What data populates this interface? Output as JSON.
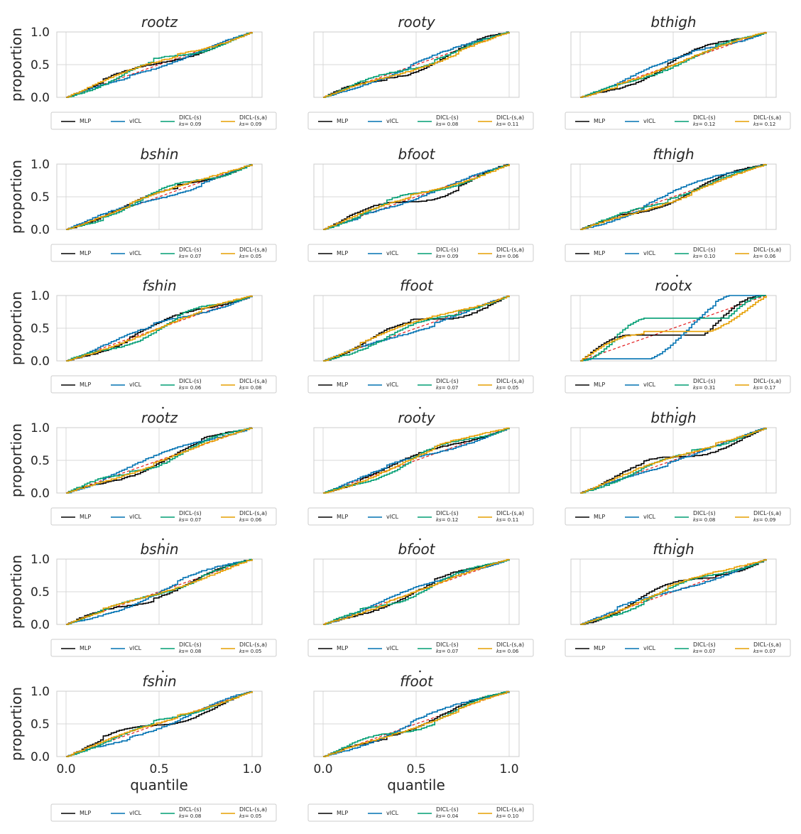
{
  "chart_data": {
    "type": "line",
    "description": "Calibration (PIT/ECDF) plots, proportion vs quantile, per state dimension",
    "xlabel": "quantile",
    "ylabel": "proportion",
    "xlim": [
      0.0,
      1.0
    ],
    "ylim": [
      0.0,
      1.0
    ],
    "xticks": [
      "0.0",
      "0.5",
      "1.0"
    ],
    "yticks": [
      "0.0",
      "0.5",
      "1.0"
    ],
    "grid": true,
    "legend_placement": "below each subplot",
    "series_names": [
      "MLP",
      "vICL",
      "DICL-(s)",
      "DICL-(s,a)"
    ],
    "series_colors": {
      "MLP": "#000000",
      "vICL": "#0072b2",
      "DICL-(s)": "#009e73",
      "DICL-(s,a)": "#e69f00",
      "reference": "#e31a1c"
    },
    "ks_prefix": "ks",
    "panels": [
      {
        "title": "rootz",
        "dot": false,
        "ks": {
          "DICL-(s)": "0.09",
          "DICL-(s,a)": "0.09"
        }
      },
      {
        "title": "rooty",
        "dot": false,
        "ks": {
          "DICL-(s)": "0.08",
          "DICL-(s,a)": "0.11"
        }
      },
      {
        "title": "bthigh",
        "dot": false,
        "ks": {
          "DICL-(s)": "0.12",
          "DICL-(s,a)": "0.12"
        }
      },
      {
        "title": "bshin",
        "dot": false,
        "ks": {
          "DICL-(s)": "0.07",
          "DICL-(s,a)": "0.05"
        }
      },
      {
        "title": "bfoot",
        "dot": false,
        "ks": {
          "DICL-(s)": "0.09",
          "DICL-(s,a)": "0.06"
        }
      },
      {
        "title": "fthigh",
        "dot": false,
        "ks": {
          "DICL-(s)": "0.10",
          "DICL-(s,a)": "0.06"
        }
      },
      {
        "title": "fshin",
        "dot": false,
        "ks": {
          "DICL-(s)": "0.06",
          "DICL-(s,a)": "0.08"
        }
      },
      {
        "title": "ffoot",
        "dot": false,
        "ks": {
          "DICL-(s)": "0.07",
          "DICL-(s,a)": "0.05"
        }
      },
      {
        "title": "rootx",
        "dot": true,
        "ks": {
          "DICL-(s)": "0.31",
          "DICL-(s,a)": "0.17"
        }
      },
      {
        "title": "rootz",
        "dot": true,
        "ks": {
          "DICL-(s)": "0.07",
          "DICL-(s,a)": "0.06"
        }
      },
      {
        "title": "rooty",
        "dot": true,
        "ks": {
          "DICL-(s)": "0.12",
          "DICL-(s,a)": "0.11"
        }
      },
      {
        "title": "bthigh",
        "dot": true,
        "ks": {
          "DICL-(s)": "0.08",
          "DICL-(s,a)": "0.09"
        }
      },
      {
        "title": "bshin",
        "dot": true,
        "ks": {
          "DICL-(s)": "0.08",
          "DICL-(s,a)": "0.05"
        }
      },
      {
        "title": "bfoot",
        "dot": true,
        "ks": {
          "DICL-(s)": "0.07",
          "DICL-(s,a)": "0.06"
        }
      },
      {
        "title": "fthigh",
        "dot": true,
        "ks": {
          "DICL-(s)": "0.07",
          "DICL-(s,a)": "0.07"
        }
      },
      {
        "title": "fshin",
        "dot": true,
        "ks": {
          "DICL-(s)": "0.08",
          "DICL-(s,a)": "0.05"
        }
      },
      {
        "title": "ffoot",
        "dot": true,
        "ks": {
          "DICL-(s)": "0.04",
          "DICL-(s,a)": "0.10"
        }
      }
    ]
  }
}
